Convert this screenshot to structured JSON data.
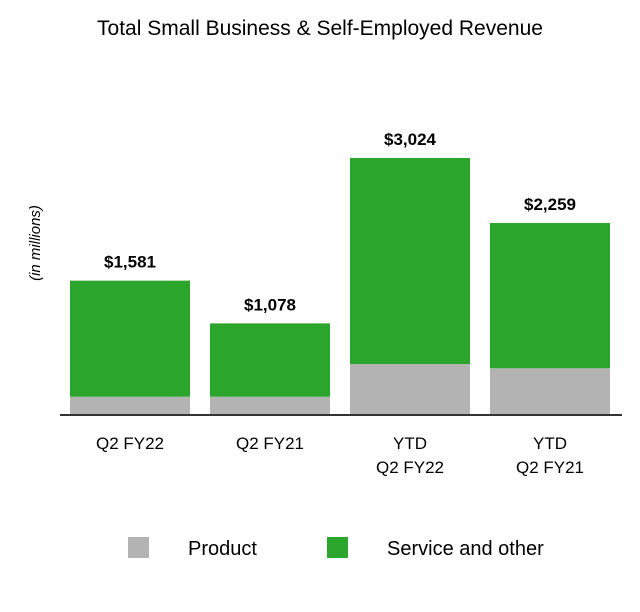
{
  "chart_data": {
    "type": "bar",
    "stacked": true,
    "title": "Total Small Business & Self-Employed Revenue",
    "ylabel": "(in millions)",
    "xlabel": "",
    "categories": [
      [
        "Q2 FY22"
      ],
      [
        "Q2 FY21"
      ],
      [
        "YTD",
        "Q2 FY22"
      ],
      [
        "YTD",
        "Q2 FY21"
      ]
    ],
    "totals_labels": [
      "$1,581",
      "$1,078",
      "$3,024",
      "$2,259"
    ],
    "series": [
      {
        "name": "Product",
        "color": "#b3b3b3",
        "values": [
          215,
          215,
          600,
          550
        ]
      },
      {
        "name": "Service and other",
        "color": "#2ca52c",
        "values": [
          1366,
          863,
          2424,
          1709
        ]
      }
    ],
    "ylim": [
      0,
      3024
    ],
    "grid": false,
    "legend": "bottom"
  }
}
